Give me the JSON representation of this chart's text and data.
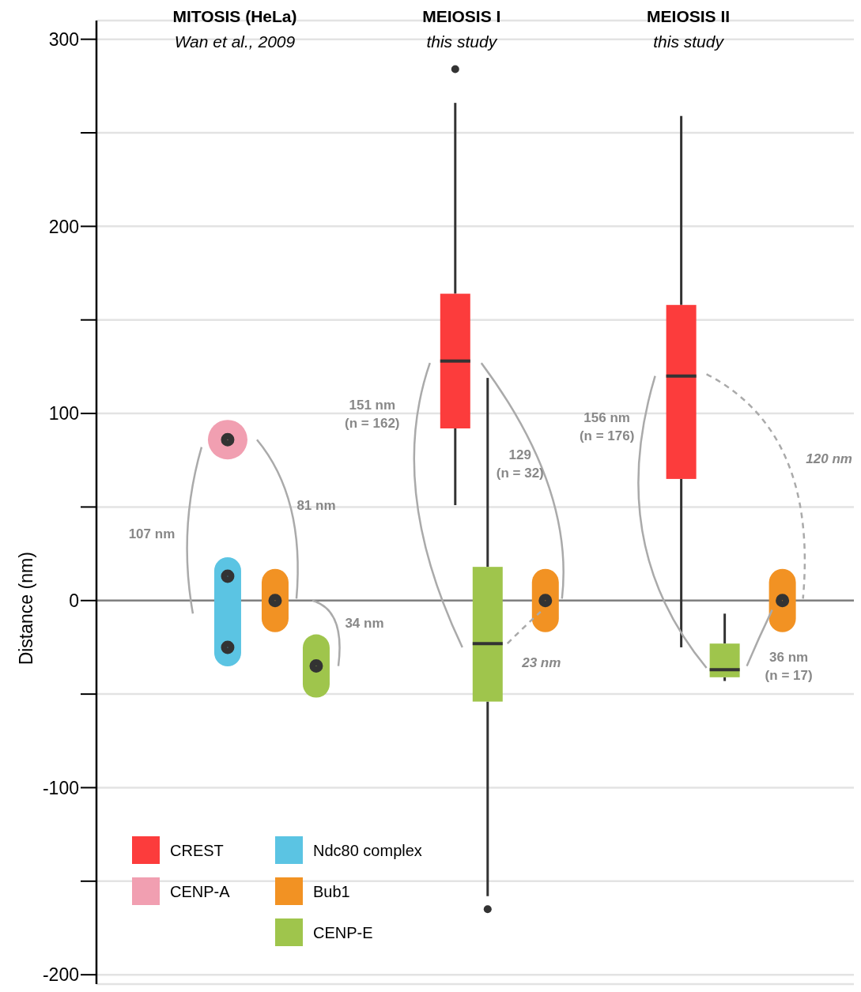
{
  "chart_data": {
    "type": "box",
    "ylabel": "Distance (nm)",
    "categories": [
      "MITOSIS (HeLa)",
      "MEIOSIS I",
      "MEIOSIS II"
    ],
    "ylim": [
      -205,
      310
    ],
    "yticks": [
      {
        "value": -200,
        "label": "-200"
      },
      {
        "value": -150,
        "label": null
      },
      {
        "value": -100,
        "label": "-100"
      },
      {
        "value": -50,
        "label": null
      },
      0,
      {
        "value": 50,
        "label": null
      },
      100,
      {
        "value": 150,
        "label": null
      },
      200,
      {
        "value": 250,
        "label": null
      },
      300
    ],
    "grid": "y",
    "legend": "bottom left",
    "ref_lines": [
      {
        "axis": "y",
        "value": 0,
        "label": null,
        "color": "#808080"
      }
    ],
    "series": [
      {
        "name": "CREST",
        "color": "#fc3c3c",
        "boxes": [
          null,
          {
            "low": 51,
            "q1": 92,
            "median": 128,
            "q3": 164,
            "high": 266,
            "outliers": [
              284
            ]
          },
          {
            "low": -25,
            "q1": 65,
            "median": 120,
            "q3": 158,
            "high": 259
          }
        ]
      },
      {
        "name": "CENP-A",
        "type": "scatter",
        "marker": "circle",
        "color": "#f19fb1",
        "x": [
          "MITOSIS (HeLa)"
        ],
        "values": [
          86
        ]
      },
      {
        "name": "Ndc80 complex",
        "type": "scatter",
        "color": "#5bc4e3",
        "x": [
          "MITOSIS (HeLa)",
          "MITOSIS (HeLa)"
        ],
        "values": [
          13,
          -25
        ]
      },
      {
        "name": "Bub1",
        "type": "scatter",
        "color": "#f29223",
        "x": [
          "MITOSIS (HeLa)",
          "MEIOSIS I",
          "MEIOSIS II"
        ],
        "values": [
          0,
          0,
          0
        ]
      },
      {
        "name": "CENP-E",
        "color": "#9fc54c",
        "boxes": [
          null,
          {
            "low": -158,
            "q1": -54,
            "median": -23,
            "q3": 18,
            "high": 119,
            "outliers": [
              -165
            ]
          },
          {
            "low": -43,
            "q1": -41,
            "median": -37,
            "q3": -23,
            "high": -7
          }
        ]
      },
      {
        "type": "scatter",
        "color": "#9fc54c",
        "x": [
          "MITOSIS (HeLa)"
        ],
        "values": [
          -35
        ]
      }
    ],
    "annotations": [
      "Wan et al., 2009",
      "this study",
      "this study",
      "107 nm",
      "81 nm",
      "34 nm",
      "151 nm\n(n = 162)",
      "129\n(n = 32)",
      "23 nm",
      "156 nm\n(n = 176)",
      "120 nm",
      "36 nm\n(n = 17)"
    ]
  }
}
